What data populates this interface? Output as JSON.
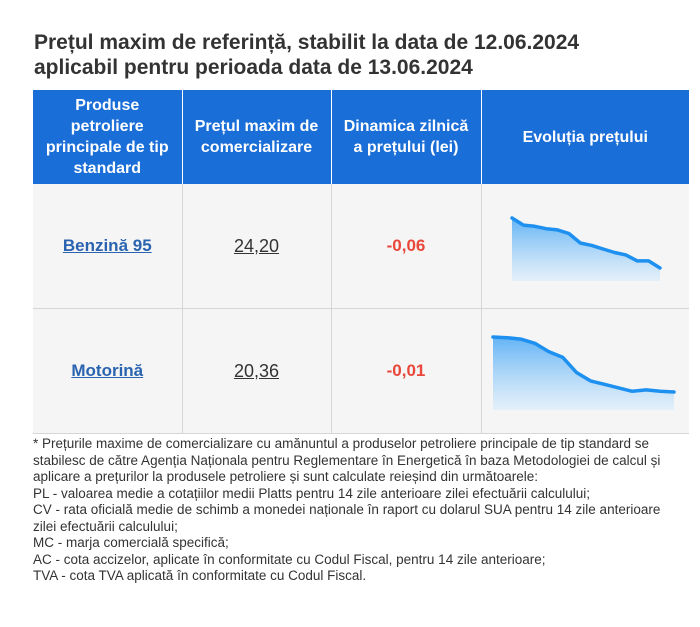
{
  "title": {
    "line1": "Prețul maxim de referință, stabilit la data de 12.06.2024",
    "line2": "aplicabil pentru perioada data de 13.06.2024"
  },
  "table": {
    "headers": [
      "Produse petroliere principale de tip standard",
      "Prețul maxim de comercializare",
      "Dinamica zilnică a prețului (lei)",
      "Evoluția prețului"
    ],
    "rows": [
      {
        "product": "Benzină 95",
        "price": "24,20",
        "change": "-0,06",
        "trend": [
          24.62,
          24.56,
          24.55,
          24.53,
          24.52,
          24.49,
          24.41,
          24.39,
          24.36,
          24.33,
          24.31,
          24.26,
          24.26,
          24.2
        ]
      },
      {
        "product": "Motorină",
        "price": "20,36",
        "change": "-0,01",
        "trend": [
          21.15,
          21.14,
          21.12,
          21.06,
          20.94,
          20.86,
          20.64,
          20.52,
          20.47,
          20.42,
          20.37,
          20.39,
          20.37,
          20.36
        ]
      }
    ]
  },
  "colors": {
    "header_bg": "#1a6ed8",
    "link": "#2a64b0",
    "negative": "#e8473a",
    "spark_line": "#1e90f0"
  },
  "notes": [
    "* Prețurile maxime de comercializare cu amănuntul a produselor petroliere principale de tip standard se stabilesc de către Agenția Naționala pentru Reglementare în Energetică în baza Metodologiei de calcul și aplicare a prețurilor la produsele petroliere și sunt calculate reieșind din următoarele:",
    "PL - valoarea medie a cotațiilor medii Platts pentru 14 zile anterioare zilei efectuării calculului;",
    "CV - rata oficială medie de schimb a monedei naționale în raport cu dolarul SUA pentru 14 zile anterioare zilei efectuării calculului;",
    "MC - marja comercială specifică;",
    "AC - cota accizelor, aplicate în conformitate cu Codul Fiscal, pentru 14 zile anterioare;",
    "TVA - cota TVA aplicată în conformitate cu Codul Fiscal."
  ]
}
